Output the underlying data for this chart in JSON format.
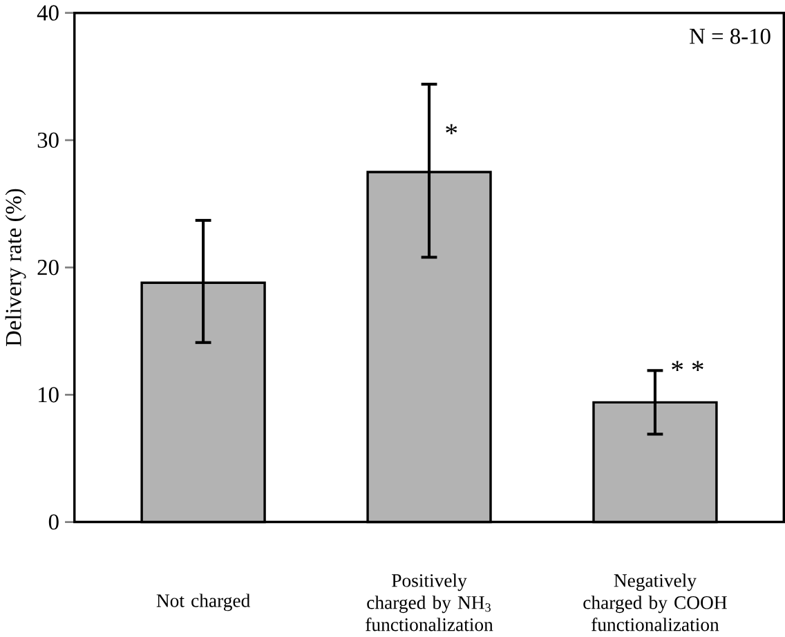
{
  "chart_data": {
    "type": "bar",
    "categories": [
      "Not charged",
      "Positively charged by NH$_{3}$ functionalization",
      "Negatively charged by COOH functionalization"
    ],
    "ylabel": "Delivery rate (%)",
    "values": [
      18.8,
      27.5,
      9.4
    ],
    "errors": [
      [
        14.1,
        23.7
      ],
      [
        20.8,
        34.4
      ],
      [
        6.9,
        11.9
      ]
    ],
    "color": "#b3b3b3",
    "ylim": [
      0,
      40
    ],
    "yticks": [
      0,
      10,
      20,
      30,
      40
    ],
    "grid": false,
    "annotations": [
      "N = 8-10",
      {
        "text": "*",
        "x": "Positively charged by NH$_{3}$ functionalization",
        "y": 29.7
      },
      {
        "text": "* *",
        "x": "Negatively charged by COOH functionalization",
        "y": 11.1
      }
    ]
  }
}
